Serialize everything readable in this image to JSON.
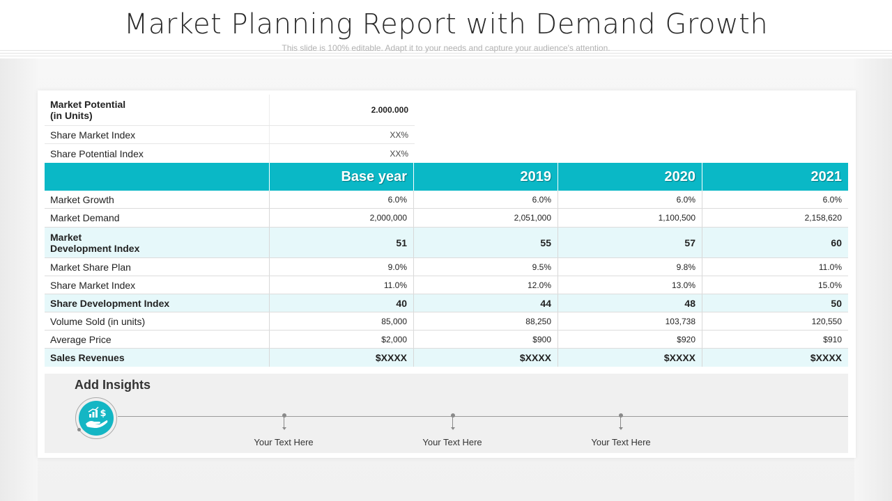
{
  "title": "Market Planning Report with Demand Growth",
  "subtitle": "This slide is 100% editable. Adapt it to your needs and capture your audience's attention.",
  "colors": {
    "accent": "#0ab8c6",
    "highlight_row": "#e6f8fa",
    "panel": "#f0f0f0"
  },
  "top_rows": [
    {
      "label_line1": "Market Potential",
      "label_line2": "(in Units)",
      "value": "2.000.000"
    },
    {
      "label": "Share Market Index",
      "value": "XX%"
    },
    {
      "label": "Share Potential Index",
      "value": "XX%"
    }
  ],
  "table": {
    "headers": [
      "Base year",
      "2019",
      "2020",
      "2021"
    ],
    "rows": [
      {
        "label": "Market Growth",
        "values": [
          "6.0%",
          "6.0%",
          "6.0%",
          "6.0%"
        ]
      },
      {
        "label": "Market Demand",
        "values": [
          "2,000,000",
          "2,051,000",
          "1,100,500",
          "2,158,620"
        ]
      },
      {
        "label_line1": "Market",
        "label_line2": "Development Index",
        "values": [
          "51",
          "55",
          "57",
          "60"
        ]
      },
      {
        "label": "Market Share Plan",
        "values": [
          "9.0%",
          "9.5%",
          "9.8%",
          "11.0%"
        ]
      },
      {
        "label": "Share Market Index",
        "values": [
          "11.0%",
          "12.0%",
          "13.0%",
          "15.0%"
        ]
      },
      {
        "label": "Share Development Index",
        "values": [
          "40",
          "44",
          "48",
          "50"
        ]
      },
      {
        "label": "Volume Sold (in units)",
        "values": [
          "85,000",
          "88,250",
          "103,738",
          "120,550"
        ]
      },
      {
        "label": "Average Price",
        "values": [
          "$2,000",
          "$900",
          "$920",
          "$910"
        ]
      },
      {
        "label": "Sales Revenues",
        "values": [
          "$XXXX",
          "$XXXX",
          "$XXXX",
          "$XXXX"
        ]
      }
    ]
  },
  "insights": {
    "title": "Add Insights",
    "icon": "money-growth-hand-icon",
    "items": [
      "Your Text Here",
      "Your Text Here",
      "Your Text Here"
    ]
  }
}
